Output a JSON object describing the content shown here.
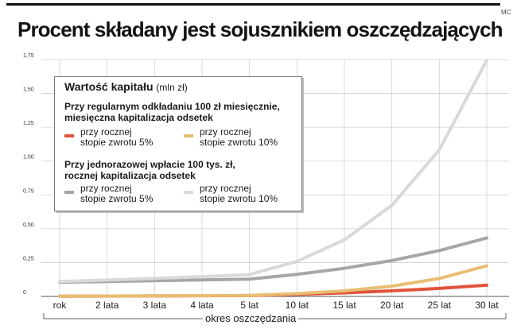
{
  "credit": "MC",
  "title": "Procent składany jest sojusznikiem oszczędzających",
  "legend": {
    "title": "Wartość kapitału",
    "unit": "(mln zł)",
    "group1_heading": [
      "Przy regularnym odkładaniu 100 zł miesięcznie,",
      "miesięczna kapitalizacja odsetek"
    ],
    "group2_heading": [
      "Przy jednorazowej wpłacie 100 tys. zł,",
      "rocznej kapitalizacja odsetek"
    ],
    "rate5_label": [
      "przy rocznej",
      "stopie zwrotu 5%"
    ],
    "rate10_label": [
      "przy rocznej",
      "stopie zwrotu 10%"
    ]
  },
  "colors": {
    "monthly_5": "#e0533a",
    "monthly_10": "#e8bd72",
    "lump_5": "#a6a6a6",
    "lump_10": "#d9d9d9",
    "grid": "#cfcfcf"
  },
  "chart_data": {
    "type": "line",
    "xlabel": "okres oszczędzania",
    "ylabel": "",
    "ylim": [
      0,
      1.75
    ],
    "yticks": [
      "0",
      "0,25",
      "0,50",
      "0,75",
      "1,00",
      "1,25",
      "1,50",
      "1,75"
    ],
    "categories": [
      "rok",
      "2 lata",
      "3 lata",
      "4 lata",
      "5 lat",
      "10 lat",
      "15 lat",
      "20 lat",
      "25 lat",
      "30 lat"
    ],
    "grid": true,
    "legend_position": "top-left",
    "series": [
      {
        "key": "monthly_5",
        "values": [
          0.0012,
          0.0025,
          0.0039,
          0.0053,
          0.0068,
          0.0155,
          0.0267,
          0.0411,
          0.0595,
          0.0832
        ]
      },
      {
        "key": "monthly_10",
        "values": [
          0.0013,
          0.0027,
          0.0042,
          0.0059,
          0.0077,
          0.0205,
          0.0414,
          0.0759,
          0.1326,
          0.2261
        ]
      },
      {
        "key": "lump_5",
        "values": [
          0.105,
          0.11,
          0.116,
          0.122,
          0.128,
          0.163,
          0.208,
          0.265,
          0.339,
          0.432
        ]
      },
      {
        "key": "lump_10",
        "values": [
          0.11,
          0.121,
          0.133,
          0.146,
          0.161,
          0.259,
          0.418,
          0.673,
          1.083,
          1.745
        ]
      }
    ]
  }
}
